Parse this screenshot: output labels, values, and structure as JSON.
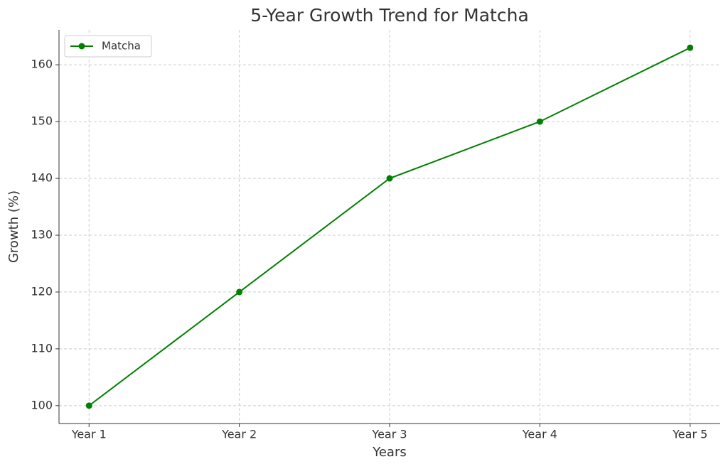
{
  "chart_data": {
    "type": "line",
    "title": "5-Year Growth Trend for Matcha",
    "x_label": "Years",
    "y_label": "Growth (%)",
    "categories": [
      "Year 1",
      "Year 2",
      "Year 3",
      "Year 4",
      "Year 5"
    ],
    "series": [
      {
        "name": "Matcha",
        "color": "#008000",
        "values": [
          100,
          120,
          140,
          150,
          163
        ]
      }
    ],
    "ylim": [
      96.85,
      166.15
    ],
    "yticks": [
      100,
      110,
      120,
      130,
      140,
      150,
      160
    ],
    "grid": true,
    "legend": "upper left"
  }
}
